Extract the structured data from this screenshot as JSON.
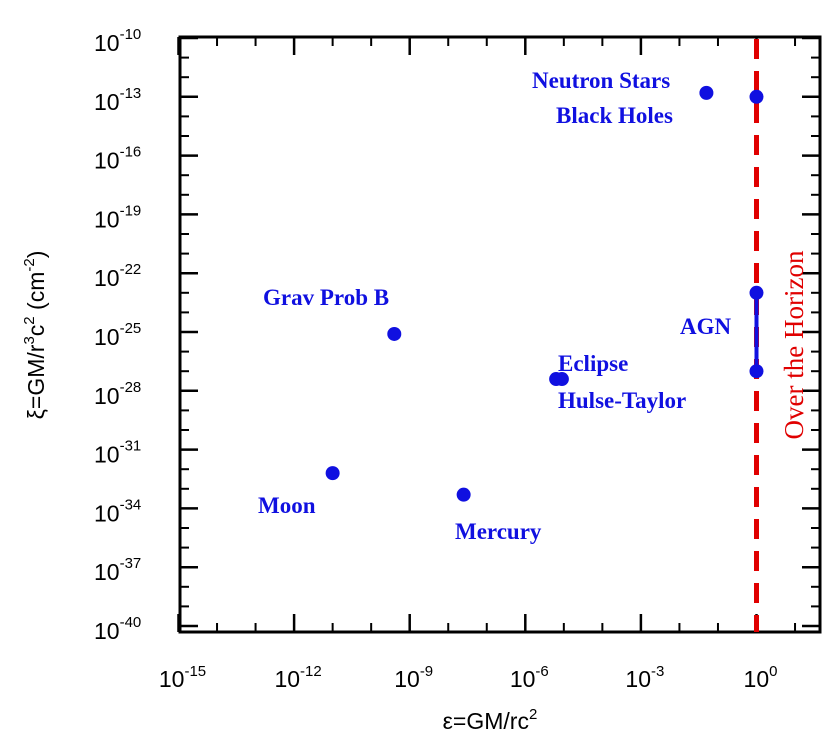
{
  "chart_data": {
    "type": "scatter",
    "title": "",
    "xlabel": "ε=GM/rc",
    "xlabel_sup": "2",
    "ylabel": "ξ=GM/r",
    "ylabel_sup1": "3",
    "ylabel_mid": "c",
    "ylabel_sup2": "2",
    "ylabel_unit": " (cm",
    "ylabel_unit_sup": "-2",
    "ylabel_end": ")",
    "x_scale": "log",
    "y_scale": "log",
    "xlim_exp": [
      -15,
      2
    ],
    "ylim_exp": [
      -40,
      -10
    ],
    "x_ticks": [
      {
        "base": "10",
        "exp": "-15",
        "value_exp": -15
      },
      {
        "base": "10",
        "exp": "-12",
        "value_exp": -12
      },
      {
        "base": "10",
        "exp": "-9",
        "value_exp": -9
      },
      {
        "base": "10",
        "exp": "-6",
        "value_exp": -6
      },
      {
        "base": "10",
        "exp": "-3",
        "value_exp": -3
      },
      {
        "base": "10",
        "exp": "0",
        "value_exp": 0
      }
    ],
    "y_ticks": [
      {
        "base": "10",
        "exp": "-10",
        "value_exp": -10
      },
      {
        "base": "10",
        "exp": "-13",
        "value_exp": -13
      },
      {
        "base": "10",
        "exp": "-16",
        "value_exp": -16
      },
      {
        "base": "10",
        "exp": "-19",
        "value_exp": -19
      },
      {
        "base": "10",
        "exp": "-22",
        "value_exp": -22
      },
      {
        "base": "10",
        "exp": "-25",
        "value_exp": -25
      },
      {
        "base": "10",
        "exp": "-28",
        "value_exp": -28
      },
      {
        "base": "10",
        "exp": "-31",
        "value_exp": -31
      },
      {
        "base": "10",
        "exp": "-34",
        "value_exp": -34
      },
      {
        "base": "10",
        "exp": "-37",
        "value_exp": -37
      },
      {
        "base": "10",
        "exp": "-40",
        "value_exp": -40
      }
    ],
    "points": [
      {
        "id": "neutron-stars",
        "x_exp": -1.3,
        "y_exp": -12.8
      },
      {
        "id": "black-holes",
        "x_exp": 0.0,
        "y_exp": -13.0
      },
      {
        "id": "agn-top",
        "x_exp": 0.0,
        "y_exp": -23.0
      },
      {
        "id": "agn-bottom",
        "x_exp": 0.0,
        "y_exp": -27.0
      },
      {
        "id": "grav-probe-b",
        "x_exp": -9.4,
        "y_exp": -25.1
      },
      {
        "id": "eclipse",
        "x_exp": -5.2,
        "y_exp": -27.4
      },
      {
        "id": "hulse-taylor",
        "x_exp": -5.05,
        "y_exp": -27.4
      },
      {
        "id": "moon",
        "x_exp": -11.0,
        "y_exp": -32.2
      },
      {
        "id": "mercury",
        "x_exp": -7.6,
        "y_exp": -33.3
      }
    ],
    "segments": [
      {
        "id": "agn-range",
        "x_exp": 0.0,
        "y1_exp": -23.0,
        "y2_exp": -27.0
      }
    ],
    "annotations": [
      {
        "id": "neutron-stars-label",
        "text": "Neutron Stars"
      },
      {
        "id": "black-holes-label",
        "text": "Black Holes"
      },
      {
        "id": "grav-probe-b-label",
        "text": "Grav Prob B"
      },
      {
        "id": "agn-label",
        "text": "AGN"
      },
      {
        "id": "eclipse-label",
        "text": "Eclipse"
      },
      {
        "id": "hulse-taylor-label",
        "text": "Hulse-Taylor"
      },
      {
        "id": "moon-label",
        "text": "Moon"
      },
      {
        "id": "mercury-label",
        "text": "Mercury"
      }
    ],
    "reference_line": {
      "x_exp": 0.0,
      "label": "Over the Horizon",
      "style": "dashed"
    },
    "colors": {
      "points": "#1010e0",
      "reference_line": "#e00000",
      "axes": "#000000"
    },
    "grid": false
  }
}
